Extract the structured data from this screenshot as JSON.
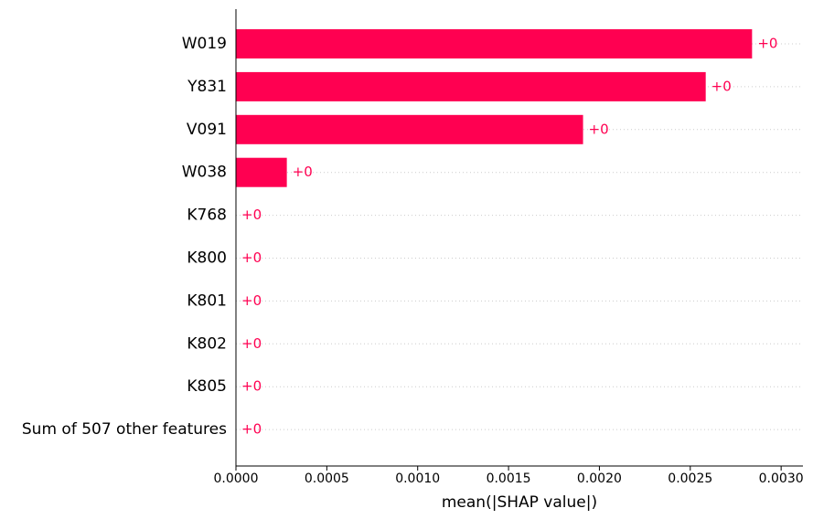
{
  "chart_data": {
    "type": "bar",
    "orientation": "horizontal",
    "categories": [
      "W019",
      "Y831",
      "V091",
      "W038",
      "K768",
      "K800",
      "K801",
      "K802",
      "K805",
      "Sum of 507 other features"
    ],
    "values": [
      0.00284,
      0.002585,
      0.00191,
      0.00028,
      0.0,
      0.0,
      0.0,
      0.0,
      0.0,
      0.0
    ],
    "value_labels": [
      "+0",
      "+0",
      "+0",
      "+0",
      "+0",
      "+0",
      "+0",
      "+0",
      "+0",
      "+0"
    ],
    "xlabel": "mean(|SHAP value|)",
    "ylabel": "",
    "title": "",
    "xlim": [
      0,
      0.00312
    ],
    "xticks": [
      0.0,
      0.0005,
      0.001,
      0.0015,
      0.002,
      0.0025,
      0.003
    ],
    "xtick_labels": [
      "0.0000",
      "0.0005",
      "0.0010",
      "0.0015",
      "0.0020",
      "0.0025",
      "0.0030"
    ],
    "grid": "dotted horizontal row guides",
    "colors": {
      "bar": "#ff0051",
      "value_label": "#ff0051",
      "axis": "#000000",
      "guide": "#cccccc"
    }
  }
}
